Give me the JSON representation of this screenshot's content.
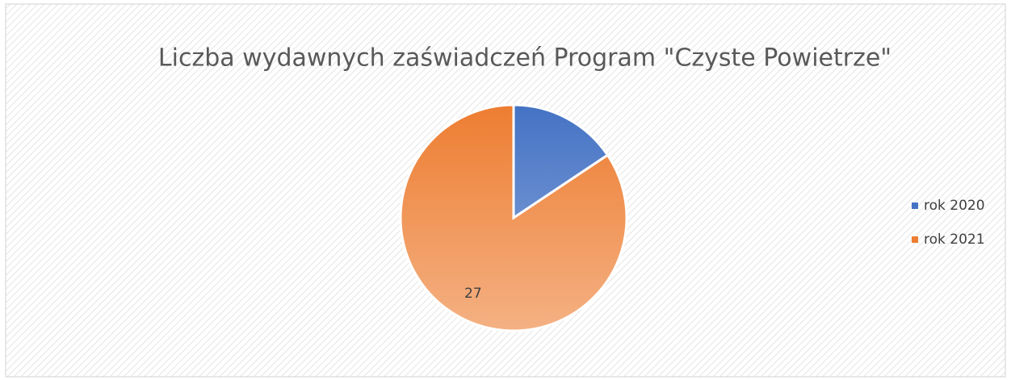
{
  "chart_data": {
    "type": "pie",
    "title": "Liczba wydawnych zaświadczeń  Program \"Czyste Powietrze\"",
    "categories": [
      "rok 2020",
      "rok 2021"
    ],
    "values": [
      5,
      27
    ],
    "value_labels": [
      null,
      "27"
    ],
    "colors": [
      "#4472c4",
      "#ed7d31"
    ],
    "legend": "right"
  }
}
